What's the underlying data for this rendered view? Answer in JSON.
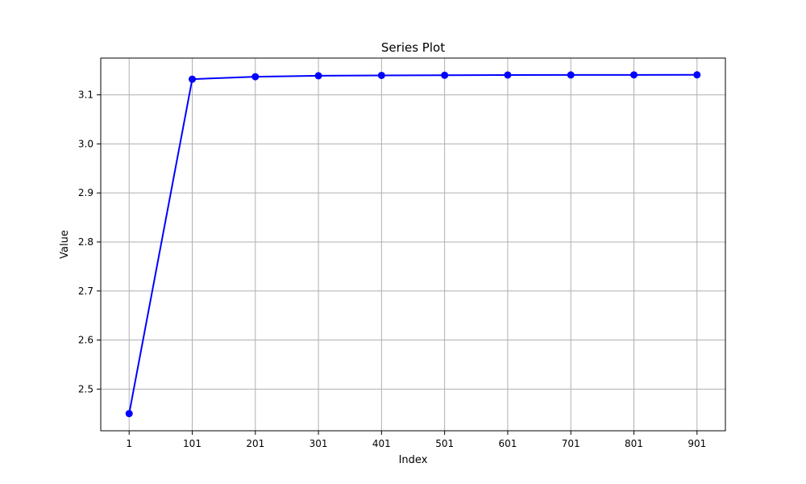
{
  "chart_data": {
    "type": "line",
    "title": "Series Plot",
    "xlabel": "Index",
    "ylabel": "Value",
    "x": [
      1,
      101,
      201,
      301,
      401,
      501,
      601,
      701,
      801,
      901
    ],
    "x_tick_labels": [
      "1",
      "101",
      "201",
      "301",
      "401",
      "501",
      "601",
      "701",
      "801",
      "901"
    ],
    "y_ticks": [
      2.5,
      2.6,
      2.7,
      2.8,
      2.9,
      3.0,
      3.1
    ],
    "y_tick_labels": [
      "2.5",
      "2.6",
      "2.7",
      "2.8",
      "2.9",
      "3.0",
      "3.1"
    ],
    "xlim": [
      -44,
      946
    ],
    "ylim": [
      2.415,
      3.175
    ],
    "grid": true,
    "series": [
      {
        "color": "#0000ff",
        "marker": "circle",
        "values": [
          2.45,
          3.132,
          3.137,
          3.139,
          3.1397,
          3.14,
          3.1405,
          3.1406,
          3.1407,
          3.1408
        ]
      }
    ]
  }
}
